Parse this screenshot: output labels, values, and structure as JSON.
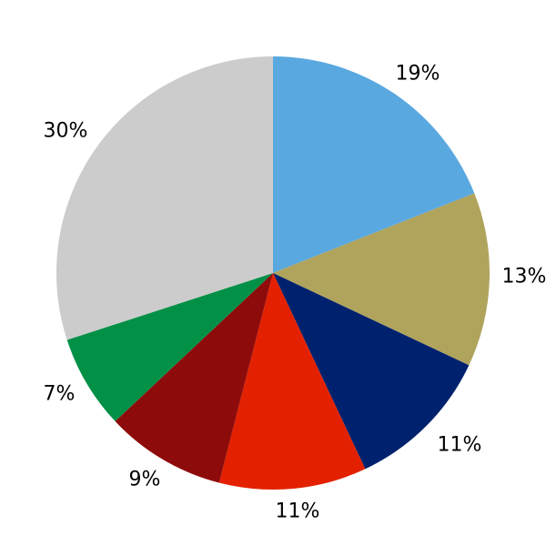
{
  "page": {
    "background_color": "#FFFFFF"
  },
  "chart_data": {
    "type": "pie",
    "title": "",
    "legend": false,
    "start_angle_deg": 90,
    "direction": "clockwise",
    "label_color": "#000000",
    "labels_outside": true,
    "slices": [
      {
        "label": "19%",
        "value": 19,
        "color": "#5AA8E0"
      },
      {
        "label": "13%",
        "value": 13,
        "color": "#B0A45D"
      },
      {
        "label": "11%",
        "value": 11,
        "color": "#00216D"
      },
      {
        "label": "11%",
        "value": 11,
        "color": "#E32100"
      },
      {
        "label": "9%",
        "value": 9,
        "color": "#8E0B0B"
      },
      {
        "label": "7%",
        "value": 7,
        "color": "#029047"
      },
      {
        "label": "30%",
        "value": 30,
        "color": "#CCCCCC"
      }
    ]
  }
}
